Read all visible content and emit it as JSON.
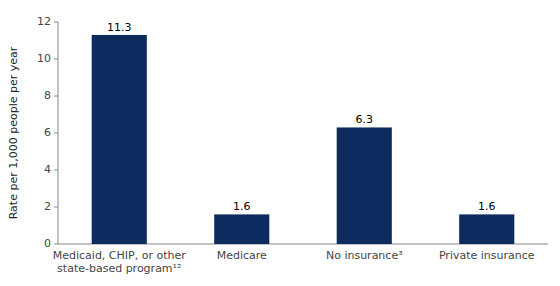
{
  "chart_data": {
    "type": "bar",
    "categories": [
      "Medicaid, CHIP, or other\nstate-based program¹²",
      "Medicare",
      "No insurance³",
      "Private insurance"
    ],
    "values": [
      11.3,
      1.6,
      6.3,
      1.6
    ],
    "color": "#0d2b5e",
    "ylabel": "Rate per 1,000 people per year",
    "ylim": [
      0,
      12
    ],
    "yticks": [
      0,
      2,
      4,
      6,
      8,
      10,
      12
    ],
    "grid": false,
    "data_labels": true
  }
}
